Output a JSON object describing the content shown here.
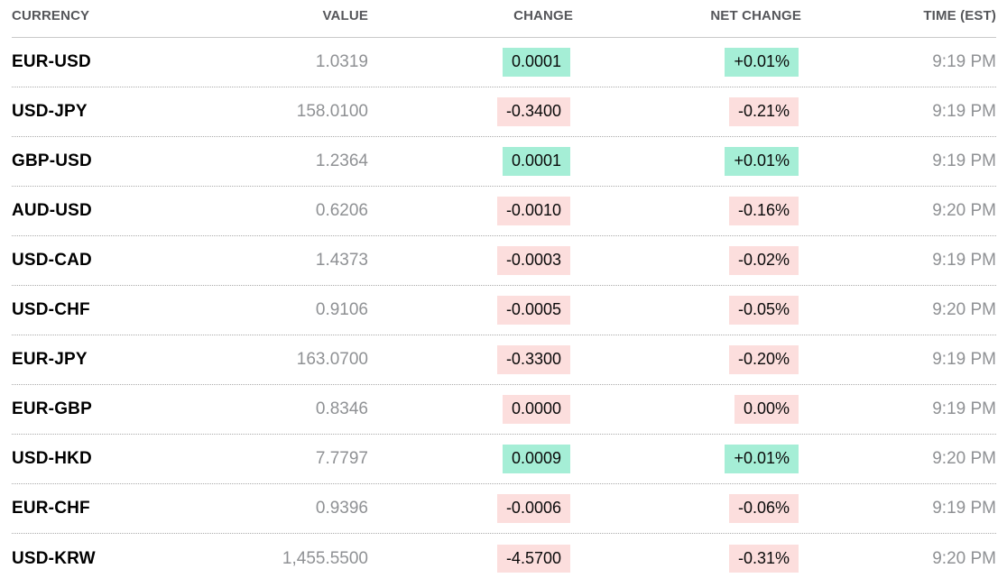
{
  "table": {
    "columns": [
      {
        "key": "currency",
        "label": "CURRENCY"
      },
      {
        "key": "value",
        "label": "VALUE"
      },
      {
        "key": "change",
        "label": "CHANGE"
      },
      {
        "key": "net_change",
        "label": "NET CHANGE"
      },
      {
        "key": "time",
        "label": "TIME (EST)"
      }
    ],
    "colors": {
      "up_bg": "#a5eed6",
      "down_bg": "#fcdedd",
      "header_text": "#55565a",
      "pair_text": "#000000",
      "muted_text": "#8f9194"
    },
    "rows": [
      {
        "pair": "EUR-USD",
        "value": "1.0319",
        "change": "0.0001",
        "net_change": "+0.01%",
        "time": "9:19 PM",
        "direction": "up"
      },
      {
        "pair": "USD-JPY",
        "value": "158.0100",
        "change": "-0.3400",
        "net_change": "-0.21%",
        "time": "9:19 PM",
        "direction": "down"
      },
      {
        "pair": "GBP-USD",
        "value": "1.2364",
        "change": "0.0001",
        "net_change": "+0.01%",
        "time": "9:19 PM",
        "direction": "up"
      },
      {
        "pair": "AUD-USD",
        "value": "0.6206",
        "change": "-0.0010",
        "net_change": "-0.16%",
        "time": "9:20 PM",
        "direction": "down"
      },
      {
        "pair": "USD-CAD",
        "value": "1.4373",
        "change": "-0.0003",
        "net_change": "-0.02%",
        "time": "9:19 PM",
        "direction": "down"
      },
      {
        "pair": "USD-CHF",
        "value": "0.9106",
        "change": "-0.0005",
        "net_change": "-0.05%",
        "time": "9:20 PM",
        "direction": "down"
      },
      {
        "pair": "EUR-JPY",
        "value": "163.0700",
        "change": "-0.3300",
        "net_change": "-0.20%",
        "time": "9:19 PM",
        "direction": "down"
      },
      {
        "pair": "EUR-GBP",
        "value": "0.8346",
        "change": "0.0000",
        "net_change": "0.00%",
        "time": "9:19 PM",
        "direction": "down"
      },
      {
        "pair": "USD-HKD",
        "value": "7.7797",
        "change": "0.0009",
        "net_change": "+0.01%",
        "time": "9:20 PM",
        "direction": "up"
      },
      {
        "pair": "EUR-CHF",
        "value": "0.9396",
        "change": "-0.0006",
        "net_change": "-0.06%",
        "time": "9:19 PM",
        "direction": "down"
      },
      {
        "pair": "USD-KRW",
        "value": "1,455.5500",
        "change": "-4.5700",
        "net_change": "-0.31%",
        "time": "9:20 PM",
        "direction": "down"
      }
    ]
  }
}
